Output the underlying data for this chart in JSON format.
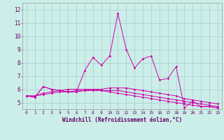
{
  "xlabel": "Windchill (Refroidissement éolien,°C)",
  "background_color": "#cceee8",
  "grid_color": "#aacccc",
  "line_color": "#cc00aa",
  "xlim": [
    -0.5,
    23.5
  ],
  "ylim": [
    4.5,
    12.5
  ],
  "yticks": [
    5,
    6,
    7,
    8,
    9,
    10,
    11,
    12
  ],
  "xticks": [
    0,
    1,
    2,
    3,
    4,
    5,
    6,
    7,
    8,
    9,
    10,
    11,
    12,
    13,
    14,
    15,
    16,
    17,
    18,
    19,
    20,
    21,
    22,
    23
  ],
  "series": [
    [
      5.5,
      5.4,
      6.2,
      6.0,
      5.9,
      5.8,
      5.8,
      7.4,
      8.4,
      7.8,
      8.5,
      11.7,
      9.0,
      7.6,
      8.3,
      8.5,
      6.7,
      6.8,
      7.7,
      4.6,
      5.1,
      4.7,
      4.7,
      4.6
    ],
    [
      5.5,
      5.4,
      6.2,
      6.0,
      5.9,
      5.8,
      5.8,
      5.9,
      6.0,
      6.0,
      6.1,
      6.1,
      6.1,
      6.0,
      5.9,
      5.8,
      5.7,
      5.6,
      5.5,
      5.3,
      5.2,
      5.1,
      5.0,
      4.9
    ],
    [
      5.5,
      5.5,
      5.6,
      5.7,
      5.8,
      5.8,
      5.9,
      5.9,
      5.9,
      5.9,
      5.9,
      5.9,
      5.8,
      5.7,
      5.6,
      5.5,
      5.4,
      5.3,
      5.2,
      5.1,
      5.0,
      4.9,
      4.8,
      4.7
    ],
    [
      5.5,
      5.5,
      5.7,
      5.8,
      5.9,
      6.0,
      6.0,
      6.0,
      6.0,
      5.9,
      5.8,
      5.7,
      5.6,
      5.5,
      5.4,
      5.3,
      5.2,
      5.1,
      5.0,
      4.9,
      4.8,
      4.7,
      4.7,
      4.6
    ]
  ]
}
